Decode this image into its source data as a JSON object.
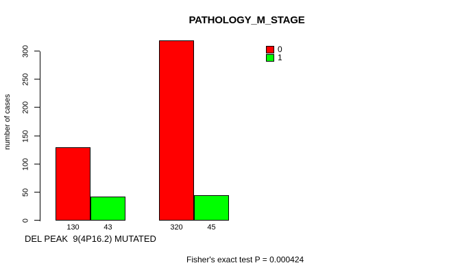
{
  "chart_data": {
    "type": "bar",
    "title": "PATHOLOGY_M_STAGE",
    "ylabel": "number of cases",
    "xlabel": "DEL PEAK  9(4P16.2) MUTATED",
    "annotation": "Fisher's exact test P = 0.000424",
    "yticks": [
      0,
      50,
      100,
      150,
      200,
      250,
      300
    ],
    "ylim": [
      0,
      300
    ],
    "grid": false,
    "legend_position": "top-right",
    "series": [
      {
        "name": "0",
        "color": "#ff0000",
        "values": [
          130,
          320
        ]
      },
      {
        "name": "1",
        "color": "#00ff00",
        "values": [
          43,
          45
        ]
      }
    ],
    "bar_value_labels": [
      [
        "130",
        "320"
      ],
      [
        "43",
        "45"
      ]
    ]
  }
}
